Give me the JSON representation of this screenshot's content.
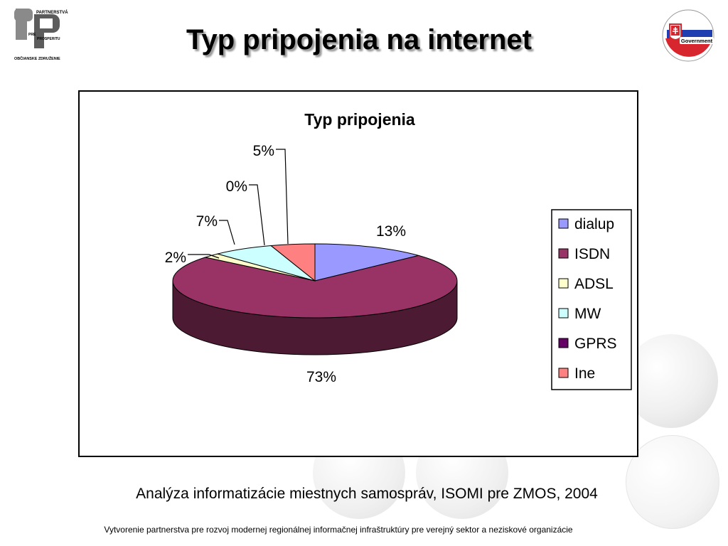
{
  "slide": {
    "title": "Typ pripojenia na internet",
    "caption": "Analýza informatizácie miestnych samospráv, ISOMI pre ZMOS, 2004",
    "footer": "Vytvorenie partnerstva pre rozvoj modernej regionálnej informačnej infraštruktúry pre verejný sektor a neziskové organizácie"
  },
  "logo_left": {
    "line1": "PARTNERSTVÁ",
    "line2": "PRE",
    "line3": "PROSPERITU",
    "line4": "OBČIANSKE ZDRUŽENIE"
  },
  "logo_right": {
    "text": "Government"
  },
  "chart_data": {
    "type": "pie",
    "title": "Typ pripojenia",
    "categories": [
      "dialup",
      "ISDN",
      "ADSL",
      "MW",
      "GPRS",
      "Ine"
    ],
    "values": [
      13,
      73,
      2,
      7,
      0,
      5
    ],
    "labels": [
      "13%",
      "73%",
      "2%",
      "7%",
      "0%",
      "5%"
    ],
    "colors": [
      "#9999ff",
      "#993366",
      "#ffffcc",
      "#ccffff",
      "#660066",
      "#ff8080"
    ],
    "three_d": true,
    "legend": "right"
  }
}
